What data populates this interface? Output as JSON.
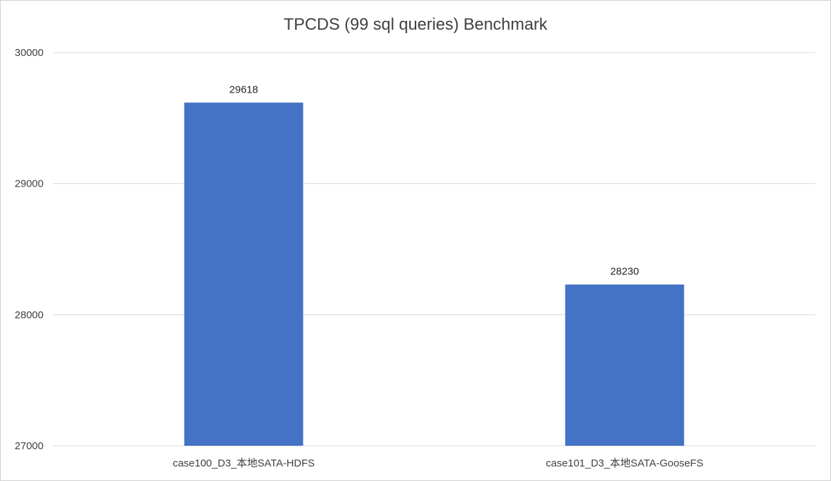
{
  "chart_data": {
    "type": "bar",
    "title": "TPCDS (99 sql queries) Benchmark",
    "categories": [
      "case100_D3_本地SATA-HDFS",
      "case101_D3_本地SATA-GooseFS"
    ],
    "series": [
      {
        "values": [
          29618,
          28230
        ]
      }
    ],
    "data_labels": [
      "29618",
      "28230"
    ],
    "ylim": [
      27000,
      30000
    ],
    "yticks": [
      27000,
      28000,
      29000,
      30000
    ],
    "ytick_labels": [
      "27000",
      "28000",
      "29000",
      "30000"
    ],
    "xlabel": "",
    "ylabel": "",
    "grid": true,
    "legend": "none",
    "bar_color": "#4472C4",
    "grid_color": "#D9D9D9"
  }
}
